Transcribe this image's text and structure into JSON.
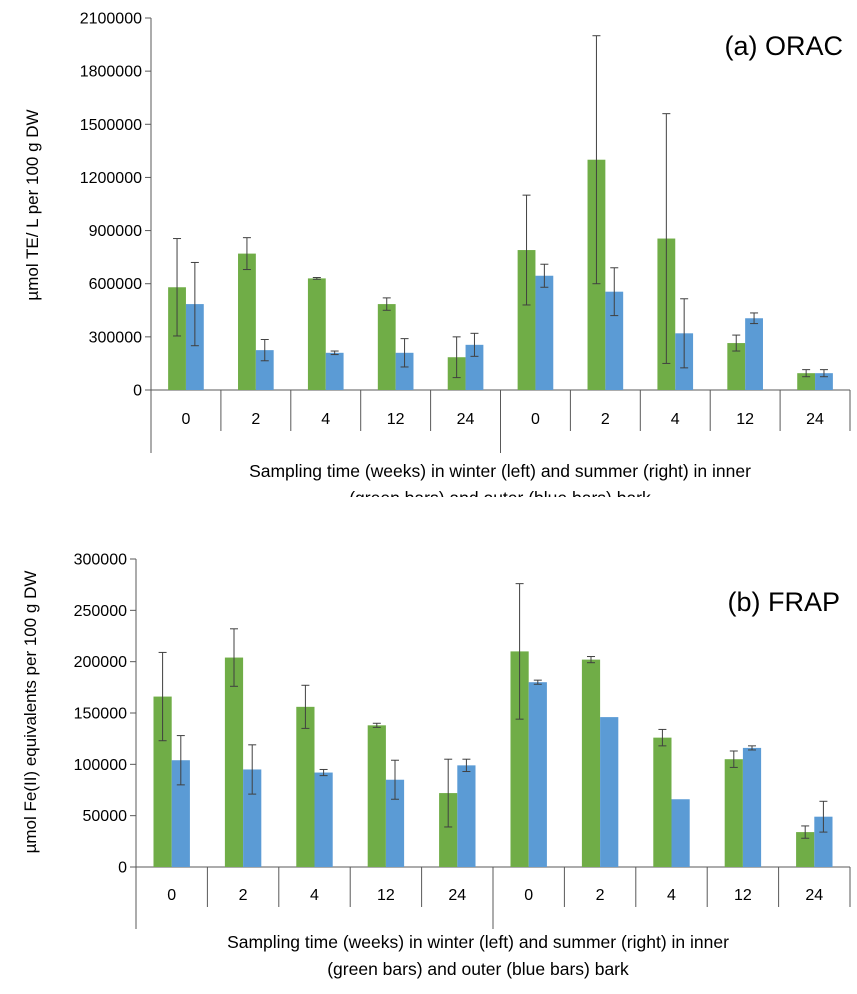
{
  "chart_data": [
    {
      "type": "bar",
      "title": "(a) ORAC",
      "ylabel": "µmol TE/ L per 100 g DW",
      "xlabel_lines": [
        "Sampling time (weeks) in winter (left) and summer (right) in inner",
        "(green bars) and outer (blue bars) bark"
      ],
      "categories": [
        "0",
        "2",
        "4",
        "12",
        "24",
        "0",
        "2",
        "4",
        "12",
        "24"
      ],
      "groups": [
        "winter",
        "summer"
      ],
      "ylim": [
        0,
        2100000
      ],
      "yticks": [
        0,
        300000,
        600000,
        900000,
        1200000,
        1500000,
        1800000,
        2100000
      ],
      "grid": false,
      "series": [
        {
          "color": "#70AD47",
          "values": [
            580000,
            770000,
            630000,
            485000,
            185000,
            790000,
            1300000,
            855000,
            265000,
            95000
          ],
          "errors": [
            275000,
            90000,
            5000,
            35000,
            115000,
            310000,
            700000,
            705000,
            45000,
            20000
          ]
        },
        {
          "color": "#5B9BD5",
          "values": [
            485000,
            225000,
            210000,
            210000,
            255000,
            645000,
            555000,
            320000,
            405000,
            95000
          ],
          "errors": [
            235000,
            60000,
            10000,
            80000,
            65000,
            65000,
            135000,
            195000,
            30000,
            20000
          ]
        }
      ]
    },
    {
      "type": "bar",
      "title": "(b) FRAP",
      "ylabel": "µmol Fe(II) equivalents per 100 g DW",
      "xlabel_lines": [
        "Sampling time (weeks) in winter (left) and summer (right) in inner",
        "(green bars) and outer (blue bars) bark"
      ],
      "categories": [
        "0",
        "2",
        "4",
        "12",
        "24",
        "0",
        "2",
        "4",
        "12",
        "24"
      ],
      "groups": [
        "winter",
        "summer"
      ],
      "ylim": [
        0,
        300000
      ],
      "yticks": [
        0,
        50000,
        100000,
        150000,
        200000,
        250000,
        300000
      ],
      "grid": false,
      "series": [
        {
          "color": "#70AD47",
          "values": [
            166000,
            204000,
            156000,
            138000,
            72000,
            210000,
            202000,
            126000,
            105000,
            34000
          ],
          "errors": [
            43000,
            28000,
            21000,
            2000,
            33000,
            66000,
            3000,
            8000,
            8000,
            6000
          ],
          "error_visible": [
            true,
            true,
            true,
            true,
            true,
            true,
            true,
            true,
            true,
            true
          ]
        },
        {
          "color": "#5B9BD5",
          "values": [
            104000,
            95000,
            92000,
            85000,
            99000,
            180000,
            146000,
            66000,
            116000,
            49000
          ],
          "errors": [
            24000,
            24000,
            3000,
            19000,
            6000,
            2000,
            0,
            0,
            2000,
            15000
          ],
          "error_visible": [
            true,
            true,
            true,
            true,
            true,
            true,
            false,
            false,
            true,
            true
          ]
        }
      ]
    }
  ]
}
